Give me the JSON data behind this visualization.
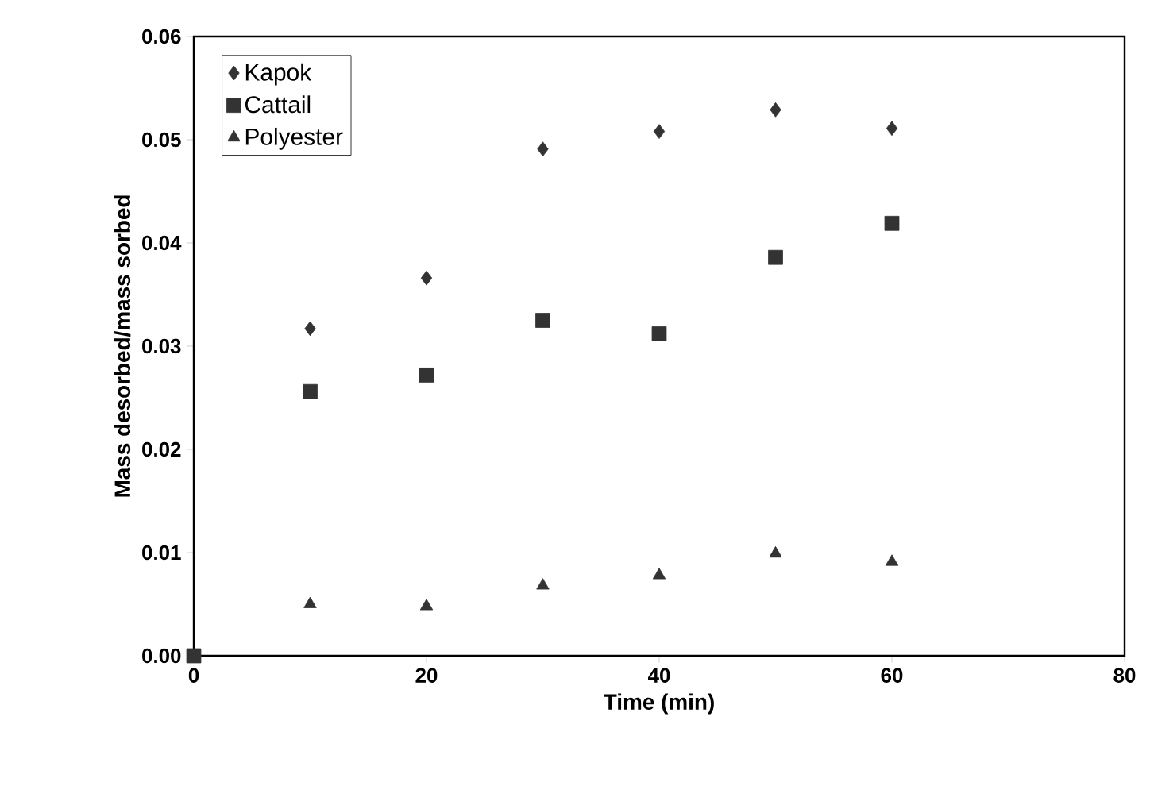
{
  "chart_data": {
    "type": "scatter",
    "xlabel": "Time (min)",
    "ylabel": "Mass desorbed/mass sorbed",
    "xlim": [
      0,
      80
    ],
    "xticks": [
      0,
      20,
      40,
      60,
      80
    ],
    "ylim": [
      0,
      0.06
    ],
    "yticks": [
      {
        "value": 0,
        "label": "0.00"
      },
      {
        "value": 0.01,
        "label": "0.01"
      },
      {
        "value": 0.02,
        "label": "0.02"
      },
      {
        "value": 0.03,
        "label": "0.03"
      },
      {
        "value": 0.04,
        "label": "0.04"
      },
      {
        "value": 0.05,
        "label": "0.05"
      },
      {
        "value": 0.06,
        "label": "0.06"
      }
    ],
    "legend": "top left",
    "grid": false,
    "series": [
      {
        "name": "Kapok",
        "color": "#333333",
        "marker": "diamond",
        "x": [
          10,
          20,
          30,
          40,
          50,
          60
        ],
        "values": [
          0.0317,
          0.0366,
          0.0491,
          0.0508,
          0.0529,
          0.0511
        ]
      },
      {
        "name": "Cattail",
        "color": "#333333",
        "marker": "square",
        "x": [
          0,
          10,
          20,
          30,
          40,
          50,
          60
        ],
        "values": [
          0,
          0.0256,
          0.0272,
          0.0325,
          0.0312,
          0.0386,
          0.0419
        ]
      },
      {
        "name": "Polyester",
        "color": "#333333",
        "marker": "triangle",
        "x": [
          10,
          20,
          30,
          40,
          50,
          60
        ],
        "values": [
          0.005,
          0.0048,
          0.0068,
          0.0078,
          0.0099,
          0.0091
        ]
      }
    ]
  }
}
